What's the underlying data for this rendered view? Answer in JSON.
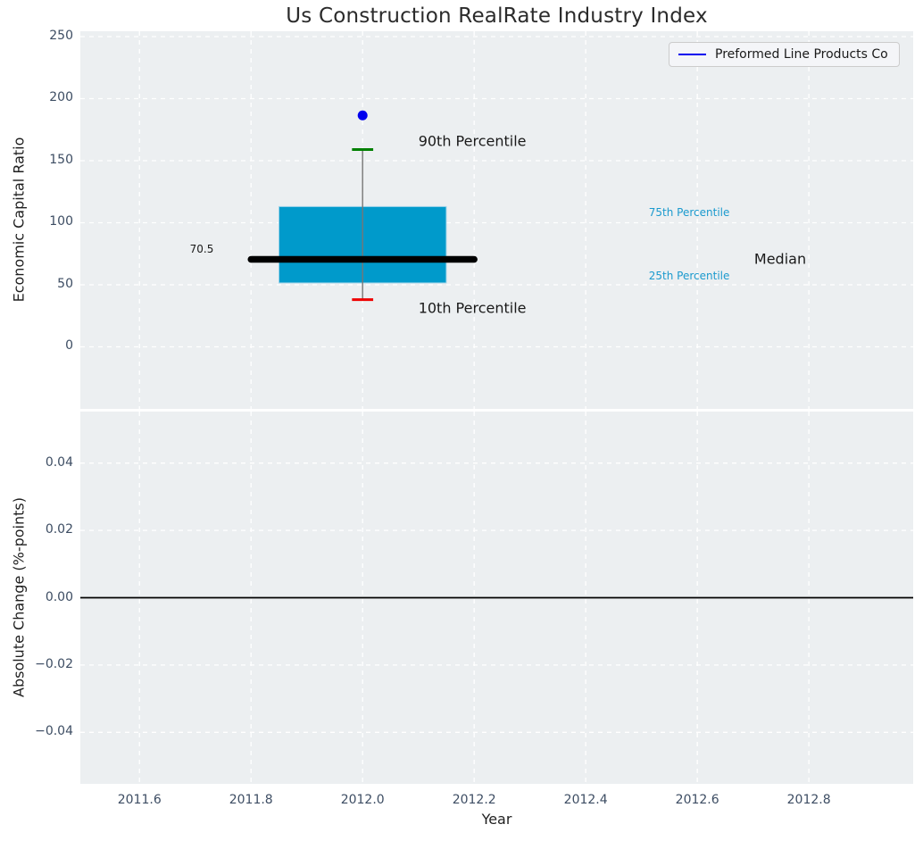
{
  "legend": {
    "label": "Preformed Line Products Co"
  },
  "colors": {
    "figure_bg": "#ffffff",
    "axes_bg": "#eceff1",
    "grid": "#ffffff",
    "title": "#2b2b2b",
    "axis_label": "#1f1f1f",
    "tick_label": "#3d4d63",
    "box_fill": "#009acb",
    "box_edge": "#9fd4ea",
    "median_line": "#000000",
    "whisker": "#777777",
    "cap_90": "#008000",
    "cap_10": "#ee0000",
    "company_marker": "#0000ee",
    "legend_line": "#0000ee",
    "legend_bg": "#f4f5f8",
    "legend_border": "#cccccc",
    "annotation_accent": "#1b9ace",
    "annotation_text": "#1a1a1a",
    "zero_line": "#000000"
  },
  "chart_data": [
    {
      "type": "box",
      "title": "Us Construction RealRate Industry Index",
      "ylabel": "Economic Capital Ratio",
      "grid": true,
      "legend_position": "upper right",
      "xlim": [
        2011.494,
        2012.987
      ],
      "ylim": [
        -50,
        254.3
      ],
      "yticks": [
        {
          "v": 0,
          "label": "0"
        },
        {
          "v": 50,
          "label": "50"
        },
        {
          "v": 100,
          "label": "100"
        },
        {
          "v": 150,
          "label": "150"
        },
        {
          "v": 200,
          "label": "200"
        },
        {
          "v": 250,
          "label": "250"
        }
      ],
      "xticks": [
        {
          "v": 2011.6,
          "label": "2011.6"
        },
        {
          "v": 2011.8,
          "label": "2011.8"
        },
        {
          "v": 2012.0,
          "label": "2012.0"
        },
        {
          "v": 2012.2,
          "label": "2012.2"
        },
        {
          "v": 2012.4,
          "label": "2012.4"
        },
        {
          "v": 2012.6,
          "label": "2012.6"
        },
        {
          "v": 2012.8,
          "label": "2012.8"
        }
      ],
      "show_xtick_labels": false,
      "boxes": [
        {
          "series": "Preformed Line Products Co",
          "x": 2012.0,
          "p10": 38,
          "p25": 51.5,
          "median": 70.5,
          "p75": 113,
          "p90": 159,
          "company_value": 186.5,
          "box_halfwidth": 0.15,
          "median_halfwidth": 0.2,
          "cap_halfwidth": 0.019
        }
      ],
      "annotations": [
        {
          "text": "90th Percentile",
          "x": 2012.1,
          "y": 166,
          "ha": "left",
          "size": 16,
          "color_key": "annotation_text"
        },
        {
          "text": "10th Percentile",
          "x": 2012.1,
          "y": 31,
          "ha": "left",
          "size": 16,
          "color_key": "annotation_text"
        },
        {
          "text": "75th Percentile",
          "x": 2012.513,
          "y": 108.5,
          "ha": "left",
          "size": 12,
          "color_key": "annotation_accent"
        },
        {
          "text": "25th Percentile",
          "x": 2012.513,
          "y": 57,
          "ha": "left",
          "size": 12,
          "color_key": "annotation_accent"
        },
        {
          "text": "Median",
          "x": 2012.702,
          "y": 70.5,
          "ha": "left",
          "size": 16,
          "color_key": "annotation_text"
        },
        {
          "text": "70.5",
          "x": 2011.733,
          "y": 79,
          "ha": "right",
          "size": 12,
          "color_key": "annotation_text"
        }
      ]
    },
    {
      "type": "line",
      "ylabel": "Absolute Change (%-points)",
      "xlabel": "Year",
      "grid": true,
      "xlim": [
        2011.494,
        2012.987
      ],
      "ylim": [
        -0.0553,
        0.0553
      ],
      "yticks": [
        {
          "v": 0.04,
          "label": "0.04"
        },
        {
          "v": 0.02,
          "label": "0.02"
        },
        {
          "v": 0,
          "label": "0.00"
        },
        {
          "v": -0.02,
          "label": "−0.02"
        },
        {
          "v": -0.04,
          "label": "−0.04"
        }
      ],
      "xticks": [
        {
          "v": 2011.6,
          "label": "2011.6"
        },
        {
          "v": 2011.8,
          "label": "2011.8"
        },
        {
          "v": 2012.0,
          "label": "2012.0"
        },
        {
          "v": 2012.2,
          "label": "2012.2"
        },
        {
          "v": 2012.4,
          "label": "2012.4"
        },
        {
          "v": 2012.6,
          "label": "2012.6"
        },
        {
          "v": 2012.8,
          "label": "2012.8"
        }
      ],
      "show_xtick_labels": true,
      "zero_line": 0,
      "series": [
        {
          "name": "Preformed Line Products Co",
          "x": [],
          "y": []
        }
      ]
    }
  ]
}
